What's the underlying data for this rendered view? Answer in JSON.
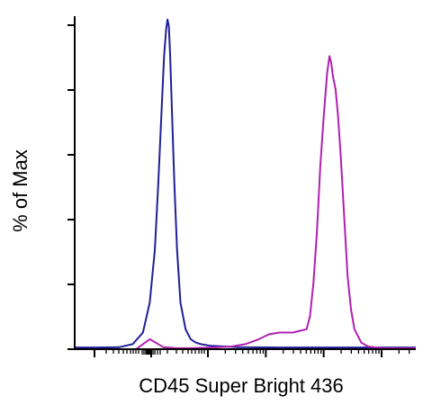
{
  "chart_data": {
    "type": "line",
    "title": "",
    "xlabel": "CD45 Super Bright 436",
    "ylabel": "% of Max",
    "x_scale": "biexponential",
    "xlim": [
      0,
      1
    ],
    "ylim": [
      0,
      100
    ],
    "grid": false,
    "legend": "none",
    "y_tick_count": 6,
    "series": [
      {
        "color": "#1f1f99",
        "x": [
          0.0,
          0.06,
          0.13,
          0.17,
          0.2,
          0.22,
          0.235,
          0.245,
          0.255,
          0.262,
          0.268,
          0.272,
          0.276,
          0.28,
          0.285,
          0.292,
          0.3,
          0.31,
          0.325,
          0.34,
          0.355,
          0.37,
          0.4,
          0.48,
          0.6,
          0.75,
          0.9,
          1.0
        ],
        "y": [
          0.5,
          0.5,
          0.6,
          1.5,
          5,
          14,
          30,
          50,
          72,
          88,
          96,
          99,
          97,
          88,
          72,
          50,
          30,
          14,
          6,
          3,
          2,
          1.5,
          1,
          0.6,
          0.5,
          0.5,
          0.5,
          0.5
        ]
      },
      {
        "color": "#b020b0",
        "x": [
          0.0,
          0.13,
          0.18,
          0.2,
          0.22,
          0.24,
          0.26,
          0.3,
          0.34,
          0.4,
          0.46,
          0.5,
          0.54,
          0.57,
          0.6,
          0.64,
          0.66,
          0.68,
          0.69,
          0.7,
          0.71,
          0.72,
          0.73,
          0.74,
          0.747,
          0.752,
          0.757,
          0.765,
          0.772,
          0.78,
          0.79,
          0.8,
          0.81,
          0.82,
          0.84,
          0.86,
          0.9,
          1.0
        ],
        "y": [
          0,
          0,
          0,
          1.5,
          3,
          1.8,
          0.6,
          0.3,
          0.3,
          0.5,
          0.8,
          1.5,
          3,
          4.5,
          5,
          5,
          5.5,
          6,
          10,
          20,
          35,
          55,
          70,
          83,
          88,
          86,
          82,
          78,
          70,
          58,
          40,
          22,
          12,
          6,
          2,
          0.8,
          0.3,
          0.3
        ]
      }
    ]
  }
}
